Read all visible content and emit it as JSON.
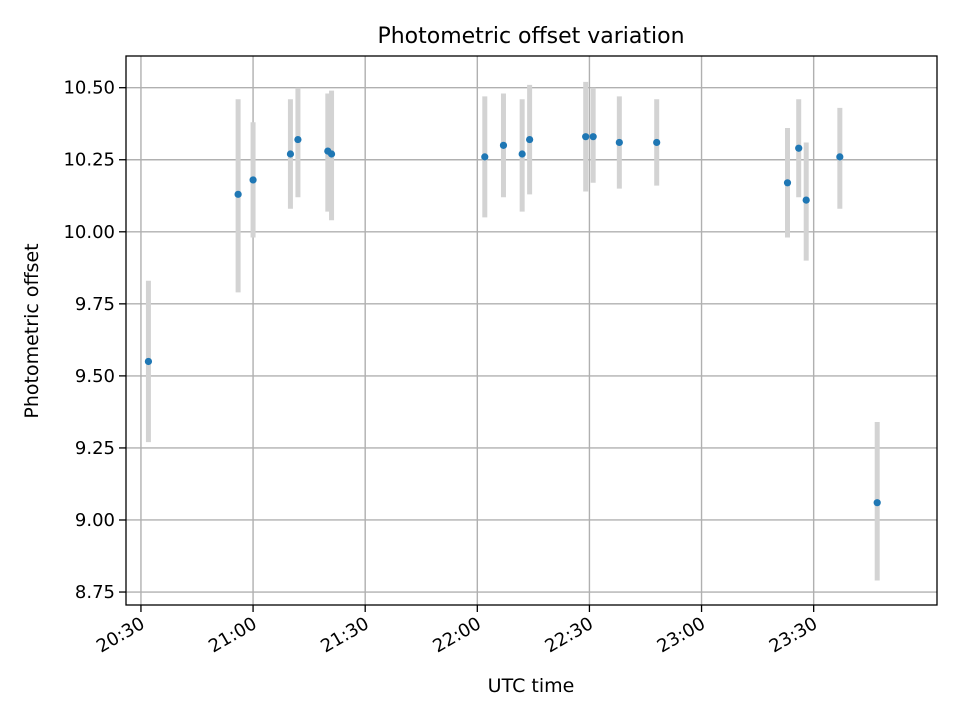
{
  "chart_data": {
    "type": "scatter",
    "title": "Photometric offset variation",
    "xlabel": "UTC time",
    "ylabel": "Photometric offset",
    "xlim": [
      "20:26",
      "24:03"
    ],
    "ylim": [
      8.705,
      10.61
    ],
    "x_ticks": [
      "20:30",
      "21:00",
      "21:30",
      "22:00",
      "22:30",
      "23:00",
      "23:30"
    ],
    "y_ticks": [
      "8.75",
      "9.00",
      "9.25",
      "9.50",
      "9.75",
      "10.00",
      "10.25",
      "10.50"
    ],
    "grid": true,
    "colors": {
      "points": "#1f77b4",
      "errorbars": "#d3d3d3",
      "grid": "#b0b0b0"
    },
    "series": [
      {
        "points": [
          {
            "x": "20:32",
            "y": 9.55,
            "err_low": 9.27,
            "err_high": 9.83
          },
          {
            "x": "20:56",
            "y": 10.13,
            "err_low": 9.79,
            "err_high": 10.46
          },
          {
            "x": "21:00",
            "y": 10.18,
            "err_low": 9.98,
            "err_high": 10.38
          },
          {
            "x": "21:10",
            "y": 10.27,
            "err_low": 10.08,
            "err_high": 10.46
          },
          {
            "x": "21:12",
            "y": 10.32,
            "err_low": 10.12,
            "err_high": 10.5
          },
          {
            "x": "21:20",
            "y": 10.28,
            "err_low": 10.07,
            "err_high": 10.48
          },
          {
            "x": "21:21",
            "y": 10.27,
            "err_low": 10.04,
            "err_high": 10.49
          },
          {
            "x": "22:02",
            "y": 10.26,
            "err_low": 10.05,
            "err_high": 10.47
          },
          {
            "x": "22:07",
            "y": 10.3,
            "err_low": 10.12,
            "err_high": 10.48
          },
          {
            "x": "22:12",
            "y": 10.27,
            "err_low": 10.07,
            "err_high": 10.46
          },
          {
            "x": "22:14",
            "y": 10.32,
            "err_low": 10.13,
            "err_high": 10.51
          },
          {
            "x": "22:29",
            "y": 10.33,
            "err_low": 10.14,
            "err_high": 10.52
          },
          {
            "x": "22:31",
            "y": 10.33,
            "err_low": 10.17,
            "err_high": 10.5
          },
          {
            "x": "22:38",
            "y": 10.31,
            "err_low": 10.15,
            "err_high": 10.47
          },
          {
            "x": "22:48",
            "y": 10.31,
            "err_low": 10.16,
            "err_high": 10.46
          },
          {
            "x": "23:23",
            "y": 10.17,
            "err_low": 9.98,
            "err_high": 10.36
          },
          {
            "x": "23:26",
            "y": 10.29,
            "err_low": 10.12,
            "err_high": 10.46
          },
          {
            "x": "23:28",
            "y": 10.11,
            "err_low": 9.9,
            "err_high": 10.31
          },
          {
            "x": "23:37",
            "y": 10.26,
            "err_low": 10.08,
            "err_high": 10.43
          },
          {
            "x": "23:47",
            "y": 9.06,
            "err_low": 8.79,
            "err_high": 9.34
          }
        ]
      }
    ]
  }
}
